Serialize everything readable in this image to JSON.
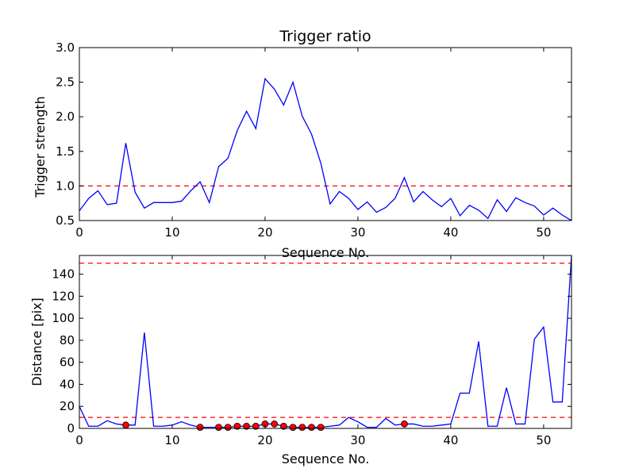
{
  "figure": {
    "background": "#ffffff"
  },
  "chart_data": [
    {
      "type": "line",
      "title": "Trigger ratio",
      "xlabel": "Sequence No.",
      "ylabel": "Trigger strength",
      "xlim": [
        0,
        53
      ],
      "ylim": [
        0.5,
        3.0
      ],
      "xticks": [
        0,
        10,
        20,
        30,
        40,
        50
      ],
      "xtick_labels": [
        "0",
        "10",
        "20",
        "30",
        "40",
        "50"
      ],
      "yticks": [
        0.5,
        1.0,
        1.5,
        2.0,
        2.5,
        3.0
      ],
      "ytick_labels": [
        "0.5",
        "1.0",
        "1.5",
        "2.0",
        "2.5",
        "3.0"
      ],
      "series": [
        {
          "name": "trigger strength",
          "color": "#0000ff",
          "x": [
            0,
            1,
            2,
            3,
            4,
            5,
            6,
            7,
            8,
            9,
            10,
            11,
            12,
            13,
            14,
            15,
            16,
            17,
            18,
            19,
            20,
            21,
            22,
            23,
            24,
            25,
            26,
            27,
            28,
            29,
            30,
            31,
            32,
            33,
            34,
            35,
            36,
            37,
            38,
            39,
            40,
            41,
            42,
            43,
            44,
            45,
            46,
            47,
            48,
            49,
            50,
            51,
            52,
            53
          ],
          "y": [
            0.64,
            0.82,
            0.93,
            0.73,
            0.75,
            1.62,
            0.91,
            0.68,
            0.76,
            0.76,
            0.76,
            0.78,
            0.93,
            1.06,
            0.76,
            1.28,
            1.4,
            1.8,
            2.08,
            1.83,
            2.55,
            2.4,
            2.17,
            2.5,
            2.01,
            1.75,
            1.33,
            0.74,
            0.92,
            0.82,
            0.66,
            0.77,
            0.62,
            0.69,
            0.82,
            1.12,
            0.77,
            0.92,
            0.8,
            0.7,
            0.82,
            0.57,
            0.72,
            0.65,
            0.53,
            0.8,
            0.63,
            0.83,
            0.76,
            0.71,
            0.58,
            0.68,
            0.58,
            0.5
          ]
        }
      ],
      "reference_lines": [
        {
          "axis": "y",
          "value": 1.0,
          "color": "#ff0000",
          "style": "dashed"
        }
      ]
    },
    {
      "type": "line",
      "title": "",
      "xlabel": "Sequence No.",
      "ylabel": "Distance [pix]",
      "xlim": [
        0,
        53
      ],
      "ylim": [
        0,
        157
      ],
      "xticks": [
        0,
        10,
        20,
        30,
        40,
        50
      ],
      "xtick_labels": [
        "0",
        "10",
        "20",
        "30",
        "40",
        "50"
      ],
      "yticks": [
        0,
        20,
        40,
        60,
        80,
        100,
        120,
        140
      ],
      "ytick_labels": [
        "0",
        "20",
        "40",
        "60",
        "80",
        "100",
        "120",
        "140"
      ],
      "series": [
        {
          "name": "distance",
          "color": "#0000ff",
          "x": [
            0,
            1,
            2,
            3,
            4,
            5,
            6,
            7,
            8,
            9,
            10,
            11,
            12,
            13,
            14,
            15,
            16,
            17,
            18,
            19,
            20,
            21,
            22,
            23,
            24,
            25,
            26,
            27,
            28,
            29,
            30,
            31,
            32,
            33,
            34,
            35,
            36,
            37,
            38,
            39,
            40,
            41,
            42,
            43,
            44,
            45,
            46,
            47,
            48,
            49,
            50,
            51,
            52,
            53
          ],
          "y": [
            20,
            2,
            2,
            7,
            4,
            3,
            3,
            87,
            2,
            2,
            3,
            6,
            3,
            1,
            1,
            1,
            1,
            2,
            2,
            2,
            4,
            4,
            2,
            1,
            1,
            1,
            1,
            2,
            3,
            10,
            6,
            1,
            1,
            9,
            3,
            4,
            4,
            2,
            2,
            3,
            4,
            32,
            32,
            79,
            2,
            2,
            37,
            4,
            4,
            81,
            92,
            24,
            24,
            157
          ]
        }
      ],
      "markers": {
        "name": "triggered frames",
        "color": "#ff0000",
        "x": [
          5,
          13,
          15,
          16,
          17,
          18,
          19,
          20,
          21,
          22,
          23,
          24,
          25,
          26,
          35
        ],
        "y": [
          3,
          1,
          1,
          1,
          2,
          2,
          2,
          4,
          4,
          2,
          1,
          1,
          1,
          1,
          4
        ]
      },
      "reference_lines": [
        {
          "axis": "y",
          "value": 10,
          "color": "#ff0000",
          "style": "dashed"
        },
        {
          "axis": "y",
          "value": 150,
          "color": "#ff0000",
          "style": "dashed"
        }
      ]
    }
  ]
}
